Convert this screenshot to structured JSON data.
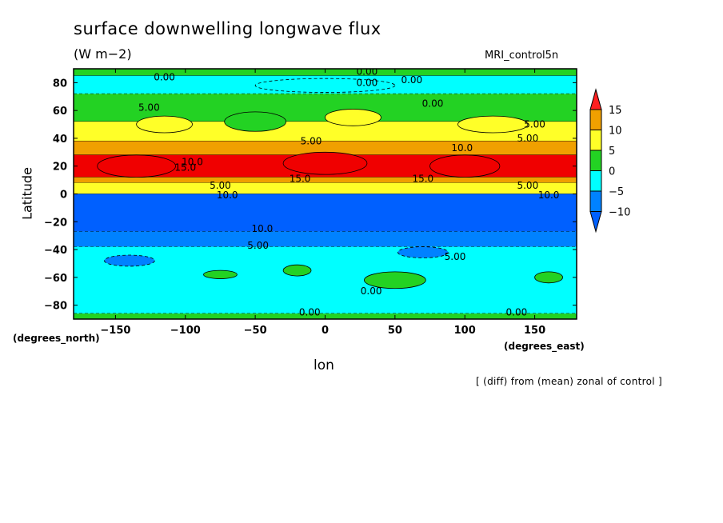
{
  "chart_data": {
    "type": "heatmap",
    "title": "surface downwelling longwave flux",
    "units": "(W m−2)",
    "run_label": "MRI_control5n",
    "xlabel": "lon",
    "ylabel": "Latitude",
    "x_unit_label": "(degrees_east)",
    "y_unit_label": "(degrees_north)",
    "note": "[ (diff) from (mean) zonal of control ]",
    "xlim": [
      -180,
      180
    ],
    "ylim": [
      -90,
      90
    ],
    "x_ticks": [
      -150,
      -100,
      -50,
      0,
      50,
      100,
      150
    ],
    "x_tick_labels": [
      "−150",
      "−100",
      "−50",
      "0",
      "50",
      "100",
      "150"
    ],
    "y_ticks": [
      -80,
      -60,
      -40,
      -20,
      0,
      20,
      40,
      60,
      80
    ],
    "y_tick_labels": [
      "−80",
      "−60",
      "−40",
      "−20",
      "0",
      "20",
      "40",
      "60",
      "80"
    ],
    "legend": {
      "placement": "right",
      "levels": [
        15,
        10,
        5,
        0,
        -5,
        -10
      ],
      "labels": [
        "15",
        "10",
        "5",
        "0",
        "−5",
        "−10"
      ],
      "colors": [
        "#f00000",
        "#f0a000",
        "#ffff28",
        "#23d223",
        "#00ffff",
        "#0082ff",
        "#0060ff",
        "#ff2020"
      ]
    },
    "zonal_bands": [
      {
        "lat_from": 90,
        "lat_to": 85,
        "value": 2
      },
      {
        "lat_from": 85,
        "lat_to": 72,
        "value": -2
      },
      {
        "lat_from": 72,
        "lat_to": 52,
        "value": 2
      },
      {
        "lat_from": 52,
        "lat_to": 38,
        "value": 7
      },
      {
        "lat_from": 38,
        "lat_to": 28,
        "value": 11
      },
      {
        "lat_from": 28,
        "lat_to": 12,
        "value": 16
      },
      {
        "lat_from": 12,
        "lat_to": 8,
        "value": 12
      },
      {
        "lat_from": 8,
        "lat_to": 0,
        "value": 6
      },
      {
        "lat_from": 0,
        "lat_to": -27,
        "value": -12
      },
      {
        "lat_from": -27,
        "lat_to": -38,
        "value": -7
      },
      {
        "lat_from": -38,
        "lat_to": -86,
        "value": -3
      },
      {
        "lat_from": -86,
        "lat_to": -90,
        "value": 1
      }
    ],
    "patches": [
      {
        "lon": -135,
        "lat": 20,
        "rlon": 28,
        "rlat": 8,
        "value": 17
      },
      {
        "lon": 0,
        "lat": 22,
        "rlon": 30,
        "rlat": 8,
        "value": 17
      },
      {
        "lon": 100,
        "lat": 20,
        "rlon": 25,
        "rlat": 8,
        "value": 17
      },
      {
        "lon": -50,
        "lat": 52,
        "rlon": 22,
        "rlat": 7,
        "value": 3
      },
      {
        "lon": 20,
        "lat": 55,
        "rlon": 20,
        "rlat": 6,
        "value": 6
      },
      {
        "lon": 120,
        "lat": 50,
        "rlon": 25,
        "rlat": 6,
        "value": 8
      },
      {
        "lon": -115,
        "lat": 50,
        "rlon": 20,
        "rlat": 6,
        "value": 8
      },
      {
        "lon": 0,
        "lat": 78,
        "rlon": 50,
        "rlat": 5,
        "value": -3
      },
      {
        "lon": 50,
        "lat": -62,
        "rlon": 22,
        "rlat": 6,
        "value": 2
      },
      {
        "lon": -75,
        "lat": -58,
        "rlon": 12,
        "rlat": 3,
        "value": 2
      },
      {
        "lon": -20,
        "lat": -55,
        "rlon": 10,
        "rlat": 4,
        "value": 2
      },
      {
        "lon": 160,
        "lat": -60,
        "rlon": 10,
        "rlat": 4,
        "value": 2
      },
      {
        "lon": -140,
        "lat": -48,
        "rlon": 18,
        "rlat": 4,
        "value": -6
      },
      {
        "lon": 70,
        "lat": -42,
        "rlon": 18,
        "rlat": 4,
        "value": -6
      }
    ],
    "contour_labels": [
      {
        "text": "0.00",
        "lon": -115,
        "lat": 84
      },
      {
        "text": "0.00",
        "lon": 30,
        "lat": 88
      },
      {
        "text": "0.00",
        "lon": 30,
        "lat": 80
      },
      {
        "text": "0.00",
        "lon": 62,
        "lat": 82
      },
      {
        "text": "0.00",
        "lon": 77,
        "lat": 65
      },
      {
        "text": "5.00",
        "lon": -126,
        "lat": 62
      },
      {
        "text": "5.00",
        "lon": -10,
        "lat": 38
      },
      {
        "text": "5.00",
        "lon": 150,
        "lat": 50
      },
      {
        "text": "5.00",
        "lon": 145,
        "lat": 40
      },
      {
        "text": "10.0",
        "lon": -95,
        "lat": 23
      },
      {
        "text": "10.0",
        "lon": 98,
        "lat": 33
      },
      {
        "text": "15.0",
        "lon": -100,
        "lat": 19
      },
      {
        "text": "15.0",
        "lon": -18,
        "lat": 11
      },
      {
        "text": "15.0",
        "lon": 70,
        "lat": 11
      },
      {
        "text": "5.00",
        "lon": -75,
        "lat": 6
      },
      {
        "text": "5.00",
        "lon": 145,
        "lat": 6
      },
      {
        "text": "10.0",
        "lon": -70,
        "lat": -1
      },
      {
        "text": "10.0",
        "lon": 160,
        "lat": -1
      },
      {
        "text": "10.0",
        "lon": -45,
        "lat": -25
      },
      {
        "text": "5.00",
        "lon": -48,
        "lat": -37
      },
      {
        "text": "5.00",
        "lon": 93,
        "lat": -45
      },
      {
        "text": "0.00",
        "lon": 33,
        "lat": -70
      },
      {
        "text": "0.00",
        "lon": -11,
        "lat": -85
      },
      {
        "text": "0.00",
        "lon": 137,
        "lat": -85
      }
    ]
  }
}
